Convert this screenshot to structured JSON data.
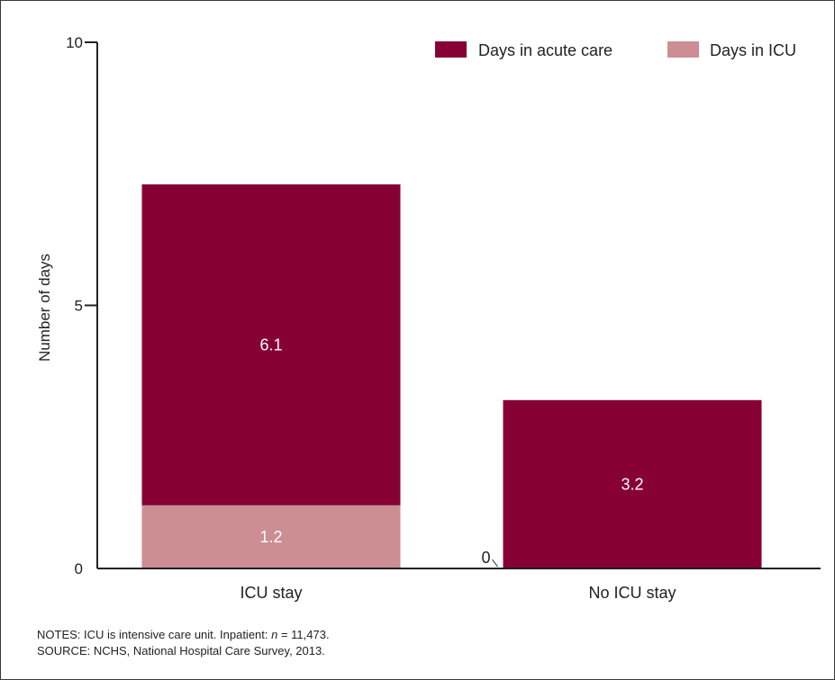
{
  "chart_data": {
    "type": "bar",
    "stacked": true,
    "title": "",
    "xlabel": "",
    "ylabel": "Number of days",
    "ylim": [
      0,
      10
    ],
    "yticks": [
      0,
      5,
      10
    ],
    "categories": [
      "ICU stay",
      "No ICU stay"
    ],
    "series": [
      {
        "name": "Days in ICU",
        "values": [
          1.2,
          0
        ],
        "labels": [
          "1.2",
          "0"
        ],
        "color": "#cc8d93"
      },
      {
        "name": "Days in acute care",
        "values": [
          6.1,
          3.2
        ],
        "labels": [
          "6.1",
          "3.2"
        ],
        "color": "#870035"
      }
    ],
    "legend": {
      "placement": "top-right",
      "order": [
        "Days in acute care",
        "Days in ICU"
      ]
    },
    "grid": false
  },
  "notes": {
    "line1_prefix": "NOTES: ICU is intensive care unit. Inpatient: ",
    "line1_italic": "n",
    "line1_suffix": " = 11,473.",
    "line2": "SOURCE: NCHS, National Hospital Care Survey, 2013."
  },
  "colors": {
    "axis": "#222222",
    "frame": "#3a3a3a"
  }
}
